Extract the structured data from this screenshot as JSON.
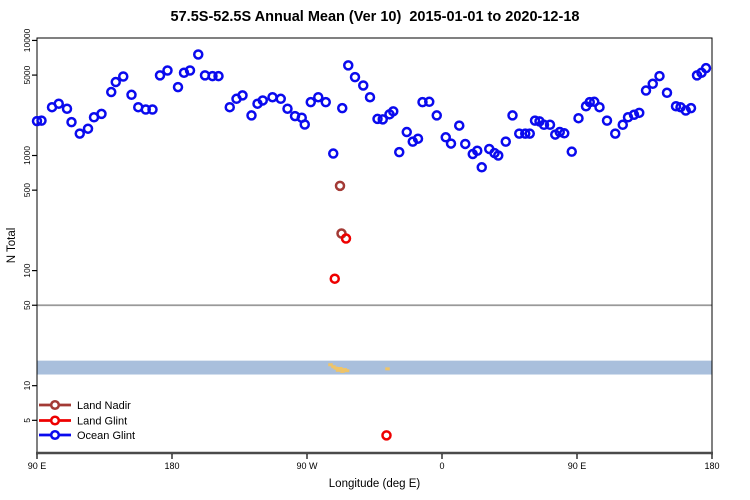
{
  "title": "57.5S-52.5S Annual Mean (Ver 10)  2015-01-01 to 2020-12-18",
  "chart_data": {
    "type": "scatter",
    "title": "57.5S-52.5S Annual Mean (Ver 10)  2015-01-01 to 2020-12-18",
    "xlabel": "Longitude (deg E)",
    "ylabel": "N Total",
    "y_scale": "log",
    "grid": false,
    "ylim": [
      2.6,
      10500
    ],
    "y_ticks": [
      10000,
      5000,
      1000,
      500,
      100,
      50,
      10,
      5
    ],
    "y_tick_labels": [
      "10000",
      "5000",
      "1000",
      "500",
      "100",
      "50",
      "10",
      "5"
    ],
    "x_axis_span_deg": 450,
    "x_axis_note": "longitude axis runs eastward from 90E around the globe to 180 (450 deg span)",
    "x_tick_offsets_deg": [
      0,
      90,
      180,
      270,
      360,
      450
    ],
    "x_tick_labels": [
      "90 E",
      "180",
      "90 W",
      "0",
      "90 E",
      "180"
    ],
    "reference_line": {
      "y": 50,
      "color": "#999999"
    },
    "shaded_band": {
      "y_from": 12.5,
      "y_to": 16.5,
      "color": "#A9BFDC"
    },
    "legend_position": "bottom-left",
    "series": [
      {
        "name": "Land Nadir",
        "color": "#A33A35",
        "points": [
          [
            202,
            545
          ],
          [
            203,
            210
          ]
        ]
      },
      {
        "name": "Land Glint",
        "color": "#EE0000",
        "points": [
          [
            198.5,
            85
          ],
          [
            206,
            190
          ],
          [
            233,
            3.7
          ]
        ]
      },
      {
        "name": "Ocean Glint",
        "color": "#0A0AEE",
        "points": [
          [
            0,
            1990
          ],
          [
            3,
            2010
          ],
          [
            10,
            2630
          ],
          [
            14.5,
            2820
          ],
          [
            20,
            2550
          ],
          [
            23,
            1950
          ],
          [
            28.5,
            1550
          ],
          [
            34,
            1710
          ],
          [
            38,
            2150
          ],
          [
            43,
            2300
          ],
          [
            49.5,
            3560
          ],
          [
            52.5,
            4350
          ],
          [
            57.5,
            4860
          ],
          [
            63,
            3370
          ],
          [
            67.5,
            2630
          ],
          [
            72.5,
            2510
          ],
          [
            77,
            2510
          ],
          [
            82,
            4970
          ],
          [
            87,
            5480
          ],
          [
            94,
            3930
          ],
          [
            98,
            5240
          ],
          [
            102,
            5480
          ],
          [
            107.5,
            7550
          ],
          [
            112,
            4970
          ],
          [
            117,
            4900
          ],
          [
            121,
            4900
          ],
          [
            128.5,
            2630
          ],
          [
            133,
            3110
          ],
          [
            137,
            3330
          ],
          [
            143,
            2230
          ],
          [
            147,
            2820
          ],
          [
            150.5,
            3010
          ],
          [
            157,
            3210
          ],
          [
            162.5,
            3110
          ],
          [
            167,
            2550
          ],
          [
            172,
            2200
          ],
          [
            176.5,
            2130
          ],
          [
            178.5,
            1860
          ],
          [
            182.5,
            2910
          ],
          [
            187.5,
            3210
          ],
          [
            192.5,
            2910
          ],
          [
            197.5,
            1040
          ],
          [
            203.5,
            2580
          ],
          [
            207.5,
            6070
          ],
          [
            212,
            4800
          ],
          [
            217.5,
            4060
          ],
          [
            222,
            3210
          ],
          [
            227,
            2080
          ],
          [
            230.5,
            2060
          ],
          [
            235,
            2280
          ],
          [
            237.5,
            2420
          ],
          [
            241.5,
            1070
          ],
          [
            246.5,
            1600
          ],
          [
            250.5,
            1320
          ],
          [
            254,
            1400
          ],
          [
            257,
            2910
          ],
          [
            261.5,
            2930
          ],
          [
            266.5,
            2230
          ],
          [
            272.5,
            1440
          ],
          [
            276,
            1270
          ],
          [
            281.5,
            1820
          ],
          [
            285.5,
            1260
          ],
          [
            290.5,
            1030
          ],
          [
            293.5,
            1100
          ],
          [
            296.5,
            790
          ],
          [
            301.5,
            1140
          ],
          [
            305,
            1050
          ],
          [
            307.5,
            1000
          ],
          [
            312.5,
            1320
          ],
          [
            317,
            2230
          ],
          [
            321.5,
            1550
          ],
          [
            325.5,
            1550
          ],
          [
            328.5,
            1550
          ],
          [
            332,
            2010
          ],
          [
            335,
            1980
          ],
          [
            338,
            1850
          ],
          [
            342,
            1850
          ],
          [
            345.5,
            1520
          ],
          [
            348.5,
            1600
          ],
          [
            351.5,
            1560
          ],
          [
            356.5,
            1080
          ],
          [
            361,
            2110
          ],
          [
            366,
            2680
          ],
          [
            368.5,
            2910
          ],
          [
            371.5,
            2930
          ],
          [
            375,
            2630
          ],
          [
            380,
            2010
          ],
          [
            385.5,
            1550
          ],
          [
            390.5,
            1850
          ],
          [
            394,
            2150
          ],
          [
            398,
            2260
          ],
          [
            401.5,
            2350
          ],
          [
            406,
            3670
          ],
          [
            410.5,
            4200
          ],
          [
            415,
            4900
          ],
          [
            420,
            3510
          ],
          [
            426,
            2680
          ],
          [
            429,
            2630
          ],
          [
            432.5,
            2460
          ],
          [
            436,
            2580
          ],
          [
            440,
            4970
          ],
          [
            443,
            5240
          ],
          [
            446,
            5740
          ]
        ]
      }
    ],
    "extra_marks": {
      "name": "yellow-marks",
      "color": "#EFC467",
      "points": [
        [
          195.5,
          15.2
        ],
        [
          197.5,
          14.6
        ],
        [
          199,
          14.2
        ],
        [
          200.5,
          13.6
        ],
        [
          202,
          14.1
        ],
        [
          203.5,
          13.3
        ],
        [
          205,
          13.8
        ],
        [
          206.5,
          13.5
        ],
        [
          233.5,
          14
        ]
      ]
    }
  },
  "legend": {
    "items": [
      {
        "label": "Land Nadir"
      },
      {
        "label": "Land Glint"
      },
      {
        "label": "Ocean Glint"
      }
    ]
  },
  "colors": {
    "plot_border": "#000000",
    "x_axis_line": "#4A4A4A",
    "tick": "#000000",
    "text": "#000000"
  }
}
